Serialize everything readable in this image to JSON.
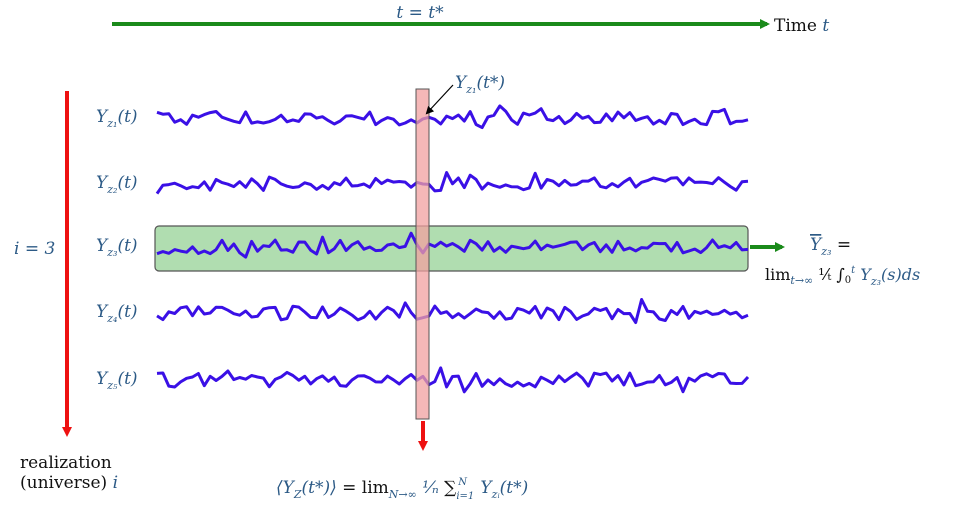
{
  "colors": {
    "signal": "#3a10e6",
    "time_arrow": "#1a8a1a",
    "realization_arrow": "#ee1111",
    "ensemble_slice": "#f2a0a0",
    "time_average_band": "#8fcf8f",
    "math_text": "#2c5a86"
  },
  "time_axis": {
    "marker": "t = t*",
    "label": "Time t"
  },
  "realization_axis": {
    "index": "i = 3",
    "label_line1": "realization",
    "label_line2": "(universe) i"
  },
  "series": [
    {
      "label": "Yz1(t)",
      "seed": 11
    },
    {
      "label": "Yz2(t)",
      "seed": 23
    },
    {
      "label": "Yz3(t)",
      "seed": 37
    },
    {
      "label": "Yz4(t)",
      "seed": 53
    },
    {
      "label": "Yz5(t)",
      "seed": 71
    }
  ],
  "annotations": {
    "point_label": "Yz1(t*)",
    "time_average_line1": "Ȳz3 =",
    "time_average_line2": "lim t→∞ (1/t) ∫₀ᵗ Yz3(s)ds",
    "ensemble_average": "⟨YZ(t*)⟩ = lim N→∞ (1/N) Σᵢ₌₁ᴺ Yzᵢ(t*)"
  }
}
